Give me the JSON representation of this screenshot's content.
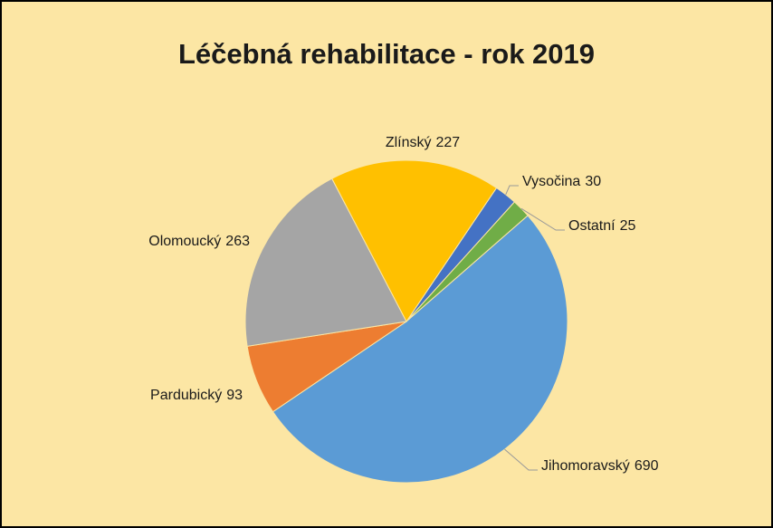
{
  "chart_data": {
    "type": "pie",
    "title": "Léčebná rehabilitace - rok 2019",
    "categories": [
      "Vysočina",
      "Ostatní",
      "Jihomoravský",
      "Pardubický",
      "Olomoucký",
      "Zlínský"
    ],
    "values": [
      30,
      25,
      690,
      93,
      263,
      227
    ],
    "colors": [
      "#4472c4",
      "#70ad47",
      "#5b9bd5",
      "#ed7d31",
      "#a5a5a5",
      "#ffc000"
    ]
  }
}
